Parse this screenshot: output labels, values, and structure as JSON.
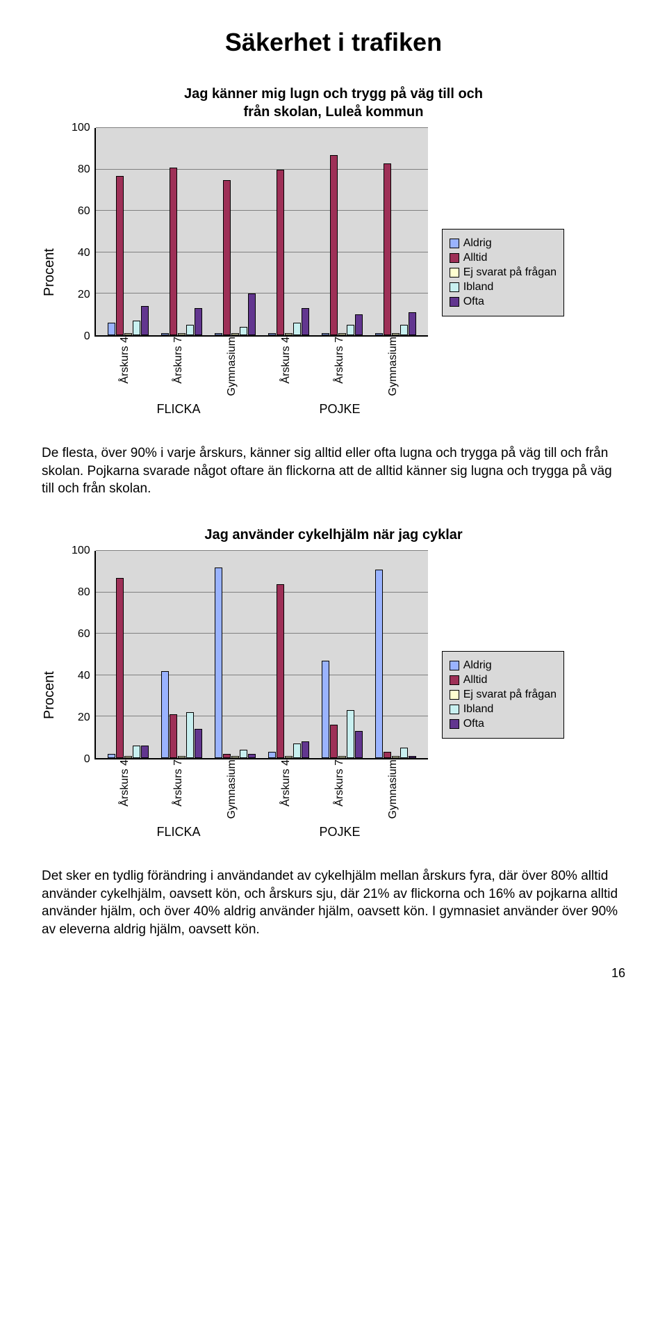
{
  "page_title": "Säkerhet i trafiken",
  "page_number": "16",
  "colors": {
    "series": {
      "aldrig": "#9ab3ff",
      "alltid": "#9e3057",
      "ej": "#ffffd0",
      "ibland": "#c8f0f0",
      "ofta": "#62368f"
    },
    "plot_bg": "#d9d9d9",
    "grid": "#808080",
    "border": "#000000"
  },
  "ylabel": "Procent",
  "ytick_labels": [
    "100",
    "80",
    "60",
    "40",
    "20",
    "0"
  ],
  "ytick_values": [
    100,
    80,
    60,
    40,
    20,
    0
  ],
  "chart1": {
    "title": "Jag känner mig lugn och trygg på väg till och\nfrån skolan, Luleå kommun",
    "ymax": 100,
    "categories": [
      {
        "label": "Årskurs 4",
        "aldrig": 6,
        "alltid": 77,
        "ej": 1,
        "ibland": 7,
        "ofta": 14
      },
      {
        "label": "Årskurs 7",
        "aldrig": 1,
        "alltid": 81,
        "ej": 1,
        "ibland": 5,
        "ofta": 13
      },
      {
        "label": "Gymnasium",
        "aldrig": 1,
        "alltid": 75,
        "ej": 1,
        "ibland": 4,
        "ofta": 20
      },
      {
        "label": "Årskurs 4",
        "aldrig": 1,
        "alltid": 80,
        "ej": 1,
        "ibland": 6,
        "ofta": 13
      },
      {
        "label": "Årskurs 7",
        "aldrig": 1,
        "alltid": 87,
        "ej": 1,
        "ibland": 5,
        "ofta": 10
      },
      {
        "label": "Gymnasium",
        "aldrig": 1,
        "alltid": 83,
        "ej": 1,
        "ibland": 5,
        "ofta": 11
      }
    ],
    "groups": [
      "FLICKA",
      "POJKE"
    ],
    "legend": [
      {
        "key": "aldrig",
        "label": "Aldrig"
      },
      {
        "key": "alltid",
        "label": "Alltid"
      },
      {
        "key": "ej",
        "label": "Ej svarat på frågan"
      },
      {
        "key": "ibland",
        "label": "Ibland"
      },
      {
        "key": "ofta",
        "label": "Ofta"
      }
    ]
  },
  "paragraph1": "De flesta, över 90% i varje årskurs, känner sig alltid eller ofta lugna och trygga på väg till och från skolan. Pojkarna svarade något oftare än flickorna att de alltid känner sig lugna och trygga på väg till och från skolan.",
  "chart2": {
    "title": "Jag använder cykelhjälm när jag cyklar",
    "ymax": 100,
    "categories": [
      {
        "label": "Årskurs 4",
        "aldrig": 2,
        "alltid": 87,
        "ej": 1,
        "ibland": 6,
        "ofta": 6
      },
      {
        "label": "Årskurs 7",
        "aldrig": 42,
        "alltid": 21,
        "ej": 1,
        "ibland": 22,
        "ofta": 14
      },
      {
        "label": "Gymnasium",
        "aldrig": 92,
        "alltid": 2,
        "ej": 1,
        "ibland": 4,
        "ofta": 2
      },
      {
        "label": "Årskurs 4",
        "aldrig": 3,
        "alltid": 84,
        "ej": 1,
        "ibland": 7,
        "ofta": 8
      },
      {
        "label": "Årskurs 7",
        "aldrig": 47,
        "alltid": 16,
        "ej": 1,
        "ibland": 23,
        "ofta": 13
      },
      {
        "label": "Gymnasium",
        "aldrig": 91,
        "alltid": 3,
        "ej": 1,
        "ibland": 5,
        "ofta": 1
      }
    ],
    "groups": [
      "FLICKA",
      "POJKE"
    ],
    "legend": [
      {
        "key": "aldrig",
        "label": "Aldrig"
      },
      {
        "key": "alltid",
        "label": "Alltid"
      },
      {
        "key": "ej",
        "label": "Ej svarat på frågan"
      },
      {
        "key": "ibland",
        "label": "Ibland"
      },
      {
        "key": "ofta",
        "label": "Ofta"
      }
    ]
  },
  "paragraph2": "Det sker en tydlig förändring i användandet av cykelhjälm mellan årskurs fyra, där över 80% alltid använder cykelhjälm, oavsett kön, och årskurs sju, där 21% av flickorna och 16% av pojkarna alltid använder hjälm, och över 40% aldrig använder hjälm, oavsett kön. I gymnasiet använder över 90% av eleverna aldrig hjälm, oavsett kön."
}
